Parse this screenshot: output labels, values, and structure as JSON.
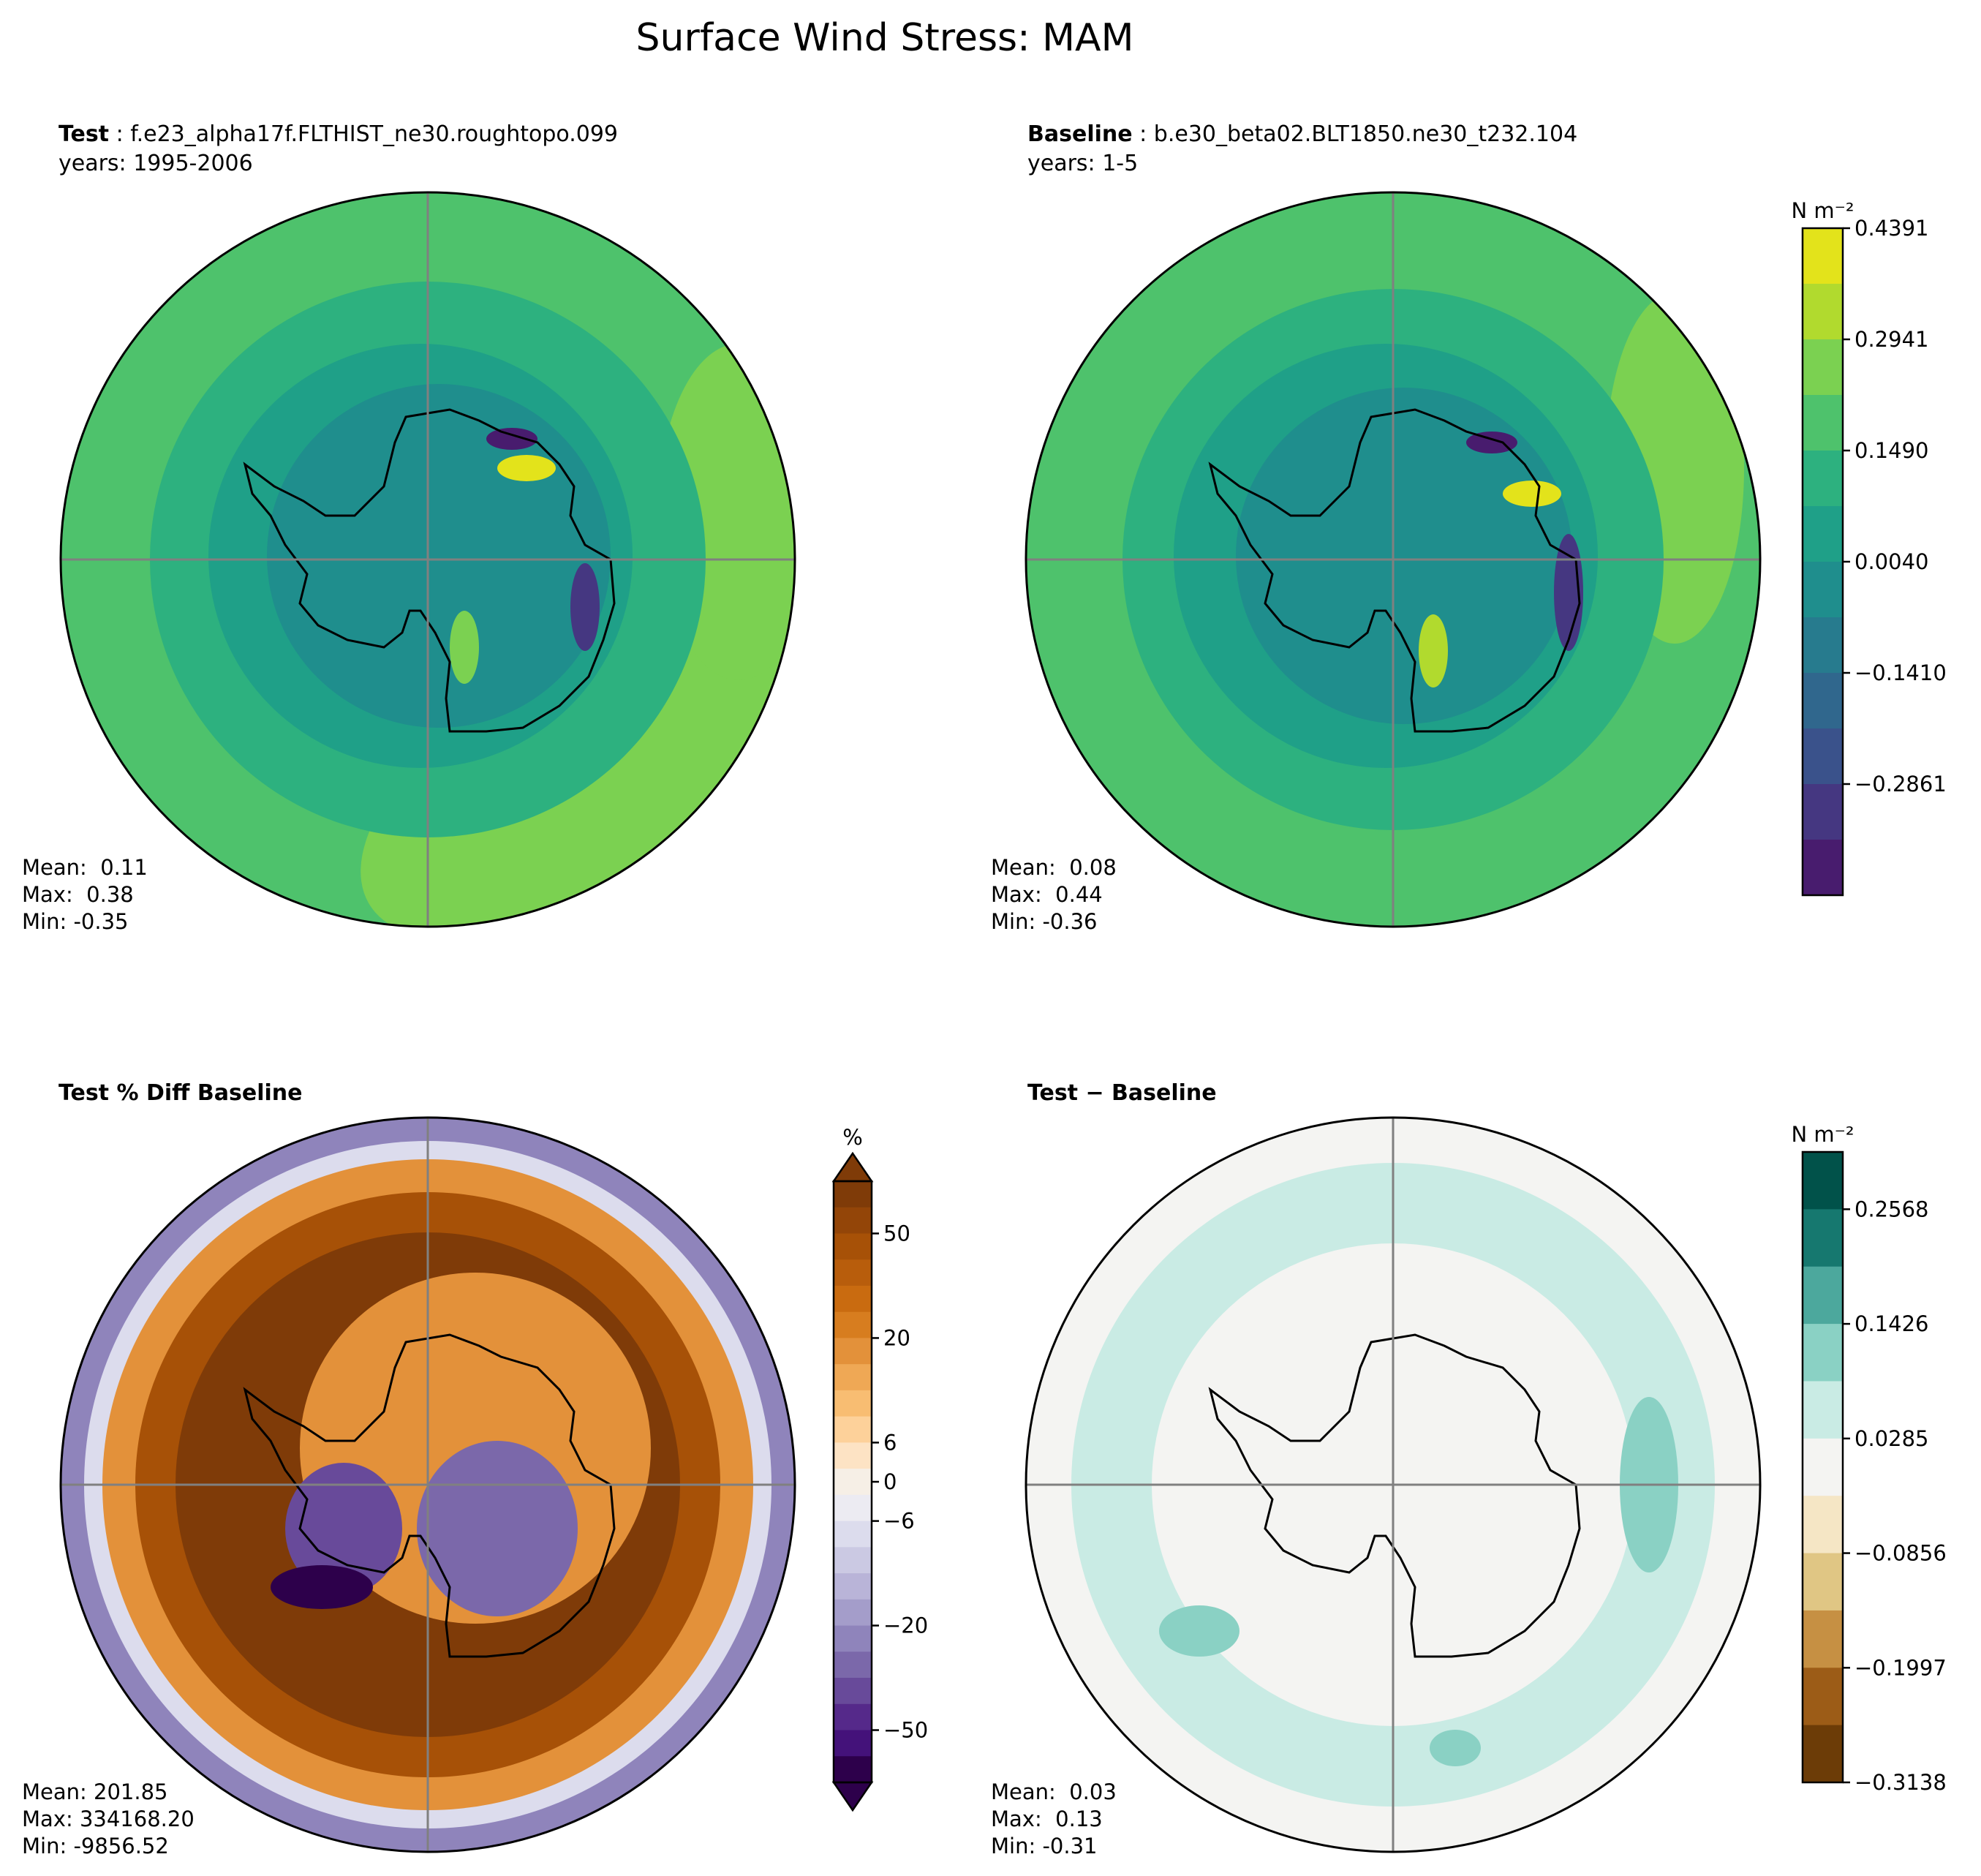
{
  "title": "Surface Wind Stress: MAM",
  "panels": [
    {
      "id": "test",
      "title_bold": "Test",
      "title_rest": "f.e23_alpha17f.FLTHIST_ne30.roughtopo.099",
      "subtitle": "years: 1995-2006",
      "stats": {
        "mean": "Mean:  0.11",
        "max": "Max:  0.38",
        "min": "Min: -0.35"
      }
    },
    {
      "id": "baseline",
      "title_bold": "Baseline",
      "title_rest": "b.e30_beta02.BLT1850.ne30_t232.104",
      "subtitle": "years: 1-5",
      "stats": {
        "mean": "Mean:  0.08",
        "max": "Max:  0.44",
        "min": "Min: -0.36"
      }
    },
    {
      "id": "pctdiff",
      "title_bold": "Test % Diff Baseline",
      "title_rest": "",
      "subtitle": "",
      "stats": {
        "mean": "Mean: 201.85",
        "max": "Max: 334168.20",
        "min": "Min: -9856.52"
      }
    },
    {
      "id": "diff",
      "title_bold": "Test − Baseline",
      "title_rest": "",
      "subtitle": "",
      "stats": {
        "mean": "Mean:  0.03",
        "max": "Max:  0.13",
        "min": "Min: -0.31"
      }
    }
  ],
  "colorbars": {
    "main": {
      "units": "N m⁻²",
      "tick_labels": [
        "0.4391",
        "0.2941",
        "0.1490",
        "0.0040",
        "−0.1410",
        "−0.2861"
      ],
      "colors": [
        "#e3e31b",
        "#b1da2e",
        "#7bd151",
        "#4ec26c",
        "#2db17f",
        "#1fa088",
        "#1f8e8d",
        "#277b8e",
        "#30678d",
        "#3a528b",
        "#453781",
        "#481c6e"
      ]
    },
    "pct": {
      "units": "%",
      "tick_labels": [
        "50",
        "20",
        "6",
        "0",
        "−6",
        "−20",
        "−50"
      ],
      "colors": [
        "#7f3b08",
        "#934508",
        "#a75107",
        "#b85d0c",
        "#c96b10",
        "#d77d1f",
        "#e3913a",
        "#efa855",
        "#f8bd72",
        "#fdd19a",
        "#fde3c4",
        "#f6efe6",
        "#ecebf2",
        "#dcdced",
        "#cbc9e3",
        "#b9b4d8",
        "#a49dca",
        "#8f84bb",
        "#7b68aa",
        "#684a9a",
        "#55298a",
        "#44127a",
        "#2d004b"
      ]
    },
    "diff": {
      "units": "N m⁻²",
      "tick_labels": [
        "0.2568",
        "0.1426",
        "0.0285",
        "−0.0856",
        "−0.1997",
        "−0.3138"
      ],
      "colors": [
        "#01524a",
        "#16786f",
        "#4ca89d",
        "#8ad1c4",
        "#c9ebe4",
        "#f4f4f2",
        "#f5e6c5",
        "#e0c684",
        "#c69043",
        "#9c5c17",
        "#6c3c07"
      ]
    }
  }
}
